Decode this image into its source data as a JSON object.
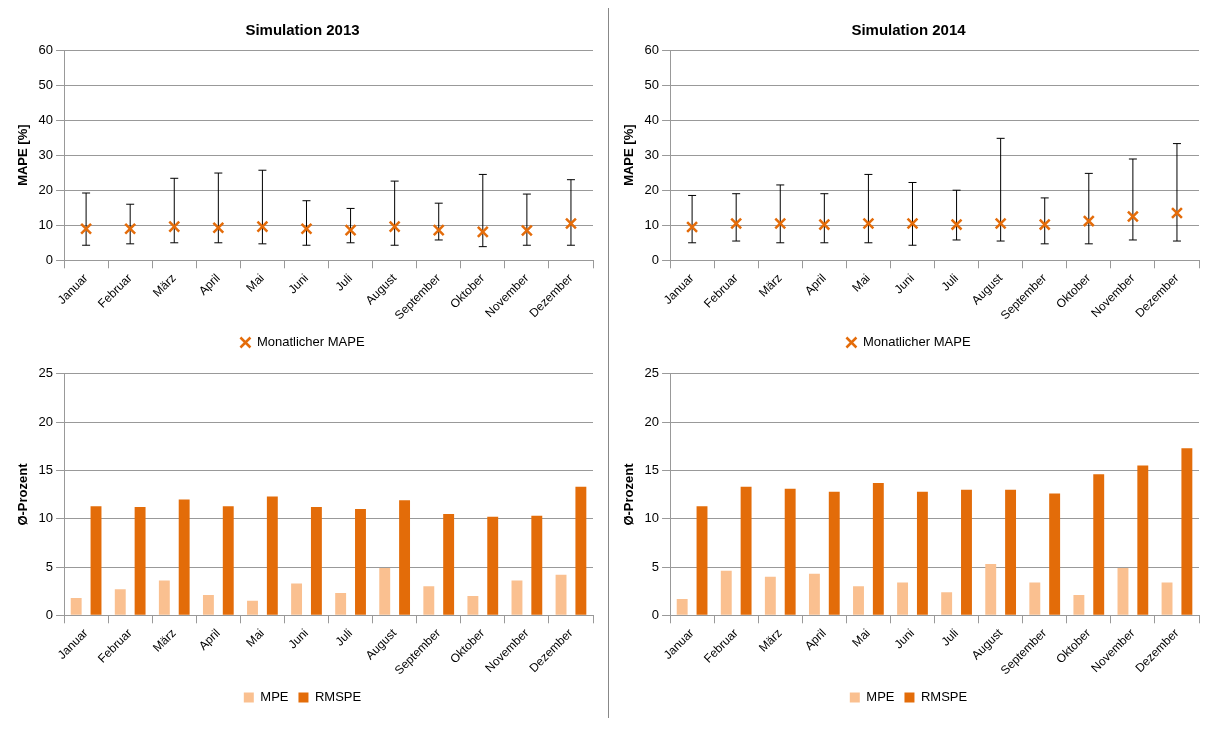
{
  "chart_data": [
    {
      "type": "scatter",
      "title": "Simulation 2013",
      "ylabel": "MAPE [%]",
      "categories": [
        "Januar",
        "Februar",
        "März",
        "April",
        "Mai",
        "Juni",
        "Juli",
        "August",
        "September",
        "Oktober",
        "November",
        "Dezember"
      ],
      "ylim": [
        0,
        60
      ],
      "yticks": [
        0,
        10,
        20,
        30,
        40,
        50,
        60
      ],
      "grid": "y",
      "legend": "bottom",
      "marker": "cross",
      "series": [
        {
          "name": "Monatlicher MAPE",
          "color": "#e46c0a",
          "values": [
            9,
            9,
            9.6,
            9.3,
            9.6,
            9,
            8.6,
            9.6,
            8.6,
            8.1,
            8.5,
            10.5
          ],
          "errors": [
            [
              4.3,
              19.2
            ],
            [
              4.7,
              16
            ],
            [
              5,
              23.4
            ],
            [
              5,
              24.9
            ],
            [
              4.7,
              25.7
            ],
            [
              4.3,
              17
            ],
            [
              5,
              14.8
            ],
            [
              4.3,
              22.6
            ],
            [
              5.8,
              16.3
            ],
            [
              3.9,
              24.5
            ],
            [
              4.3,
              18.9
            ],
            [
              4.3,
              23
            ]
          ]
        }
      ]
    },
    {
      "type": "scatter",
      "title": "Simulation 2014",
      "ylabel": "MAPE [%]",
      "categories": [
        "Januar",
        "Februar",
        "März",
        "April",
        "Mai",
        "Juni",
        "Juli",
        "August",
        "September",
        "Oktober",
        "November",
        "Dezember"
      ],
      "ylim": [
        0,
        60
      ],
      "yticks": [
        0,
        10,
        20,
        30,
        40,
        50,
        60
      ],
      "grid": "y",
      "legend": "bottom",
      "marker": "cross",
      "series": [
        {
          "name": "Monatlicher MAPE",
          "color": "#e46c0a",
          "values": [
            9.5,
            10.5,
            10.5,
            10.2,
            10.5,
            10.5,
            10.2,
            10.5,
            10.2,
            11.2,
            12.5,
            13.5
          ],
          "errors": [
            [
              5,
              18.5
            ],
            [
              5.5,
              19
            ],
            [
              5,
              21.5
            ],
            [
              5,
              19
            ],
            [
              5,
              24.5
            ],
            [
              4.3,
              22.2
            ],
            [
              5.8,
              20
            ],
            [
              5.5,
              34.8
            ],
            [
              4.7,
              17.8
            ],
            [
              4.7,
              24.8
            ],
            [
              5.8,
              28.9
            ],
            [
              5.5,
              33.3
            ]
          ]
        }
      ]
    },
    {
      "type": "bar",
      "ylabel": "Ø-Prozent",
      "categories": [
        "Januar",
        "Februar",
        "März",
        "April",
        "Mai",
        "Juni",
        "Juli",
        "August",
        "September",
        "Oktober",
        "November",
        "Dezember"
      ],
      "ylim": [
        0,
        25
      ],
      "yticks": [
        0,
        5,
        10,
        15,
        20,
        25
      ],
      "grid": "y",
      "legend": "bottom",
      "series": [
        {
          "name": "MPE",
          "color": "#fac090",
          "values": [
            1.8,
            2.7,
            3.6,
            2.1,
            1.5,
            3.3,
            2.3,
            4.9,
            3.0,
            2.0,
            3.6,
            4.2
          ]
        },
        {
          "name": "RMSPE",
          "color": "#e36c09",
          "values": [
            11.3,
            11.2,
            12.0,
            11.3,
            12.3,
            11.2,
            11.0,
            11.9,
            10.5,
            10.2,
            10.3,
            13.3
          ]
        }
      ]
    },
    {
      "type": "bar",
      "ylabel": "Ø-Prozent",
      "categories": [
        "Januar",
        "Februar",
        "März",
        "April",
        "Mai",
        "Juni",
        "Juli",
        "August",
        "September",
        "Oktober",
        "November",
        "Dezember"
      ],
      "ylim": [
        0,
        25
      ],
      "yticks": [
        0,
        5,
        10,
        15,
        20,
        25
      ],
      "grid": "y",
      "legend": "bottom",
      "series": [
        {
          "name": "MPE",
          "color": "#fac090",
          "values": [
            1.7,
            4.6,
            4.0,
            4.3,
            3.0,
            3.4,
            2.4,
            5.3,
            3.4,
            2.1,
            4.9,
            3.4
          ]
        },
        {
          "name": "RMSPE",
          "color": "#e36c09",
          "values": [
            11.3,
            13.3,
            13.1,
            12.8,
            13.7,
            12.8,
            13.0,
            13.0,
            12.6,
            14.6,
            15.5,
            17.3
          ]
        }
      ]
    }
  ]
}
